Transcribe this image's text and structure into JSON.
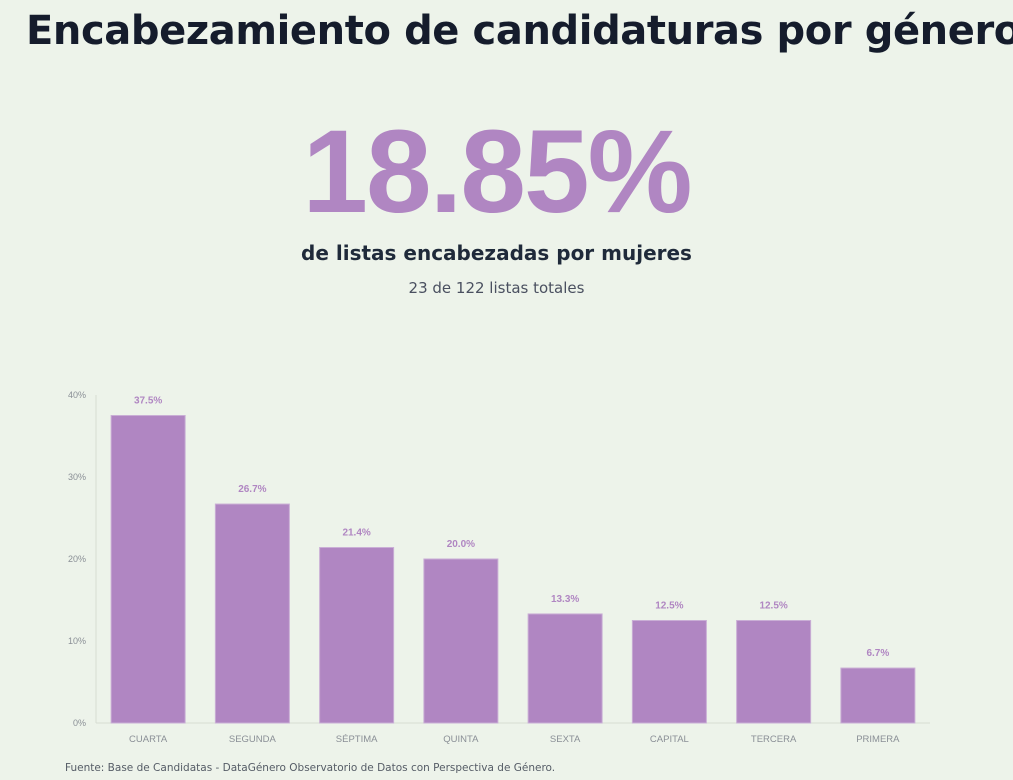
{
  "title": "Encabezamiento de candidaturas por género",
  "stat": {
    "value": "18.85%",
    "label": "de listas encabezadas por mujeres",
    "detail": "23 de 122 listas totales"
  },
  "colors": {
    "accent": "#b086c2",
    "background": "#edf3ea"
  },
  "chart_data": {
    "type": "bar",
    "categories": [
      "CUARTA",
      "SEGUNDA",
      "SÉPTIMA",
      "QUINTA",
      "SEXTA",
      "CAPITAL",
      "TERCERA",
      "PRIMERA"
    ],
    "values": [
      37.5,
      26.7,
      21.4,
      20.0,
      13.3,
      12.5,
      12.5,
      6.7
    ],
    "data_labels": [
      "37.5%",
      "26.7%",
      "21.4%",
      "20.0%",
      "13.3%",
      "12.5%",
      "12.5%",
      "6.7%"
    ],
    "yticks": [
      0,
      10,
      20,
      30,
      40
    ],
    "ytick_labels": [
      "0%",
      "10%",
      "20%",
      "30%",
      "40%"
    ],
    "ylim": [
      0,
      40
    ],
    "legend": "none",
    "grid": false
  },
  "footer": "Fuente: Base de Candidatas - DataGénero Observatorio de Datos con Perspectiva de Género."
}
